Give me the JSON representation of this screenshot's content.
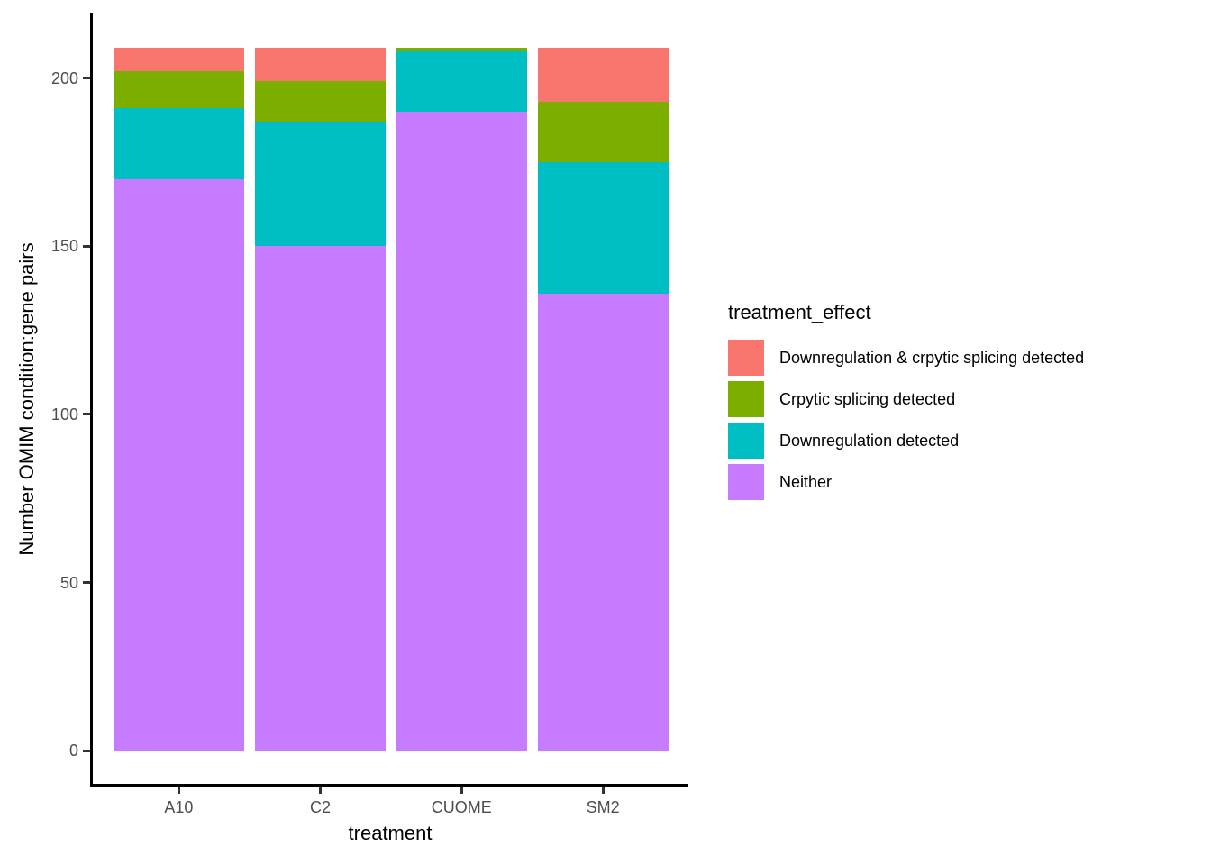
{
  "chart_data": {
    "type": "bar",
    "stacked": true,
    "xlabel": "treatment",
    "ylabel": "Number OMIM condition:gene pairs",
    "categories": [
      "A10",
      "C2",
      "CUOME",
      "SM2"
    ],
    "series": [
      {
        "name": "Downregulation & crpytic splicing detected",
        "color": "#F8766D",
        "values": [
          7,
          10,
          0,
          16
        ]
      },
      {
        "name": "Crpytic splicing detected",
        "color": "#7CAE00",
        "values": [
          11,
          12,
          1,
          18
        ]
      },
      {
        "name": "Downregulation detected",
        "color": "#00BFC4",
        "values": [
          21,
          37,
          18,
          39
        ]
      },
      {
        "name": "Neither",
        "color": "#C77CFF",
        "values": [
          170,
          150,
          190,
          136
        ]
      }
    ],
    "bar_total": 209,
    "y_ticks": [
      0,
      50,
      100,
      150,
      200
    ],
    "ylim": [
      0,
      209
    ],
    "grid": false,
    "legend_title": "treatment_effect",
    "legend_position": "right"
  }
}
